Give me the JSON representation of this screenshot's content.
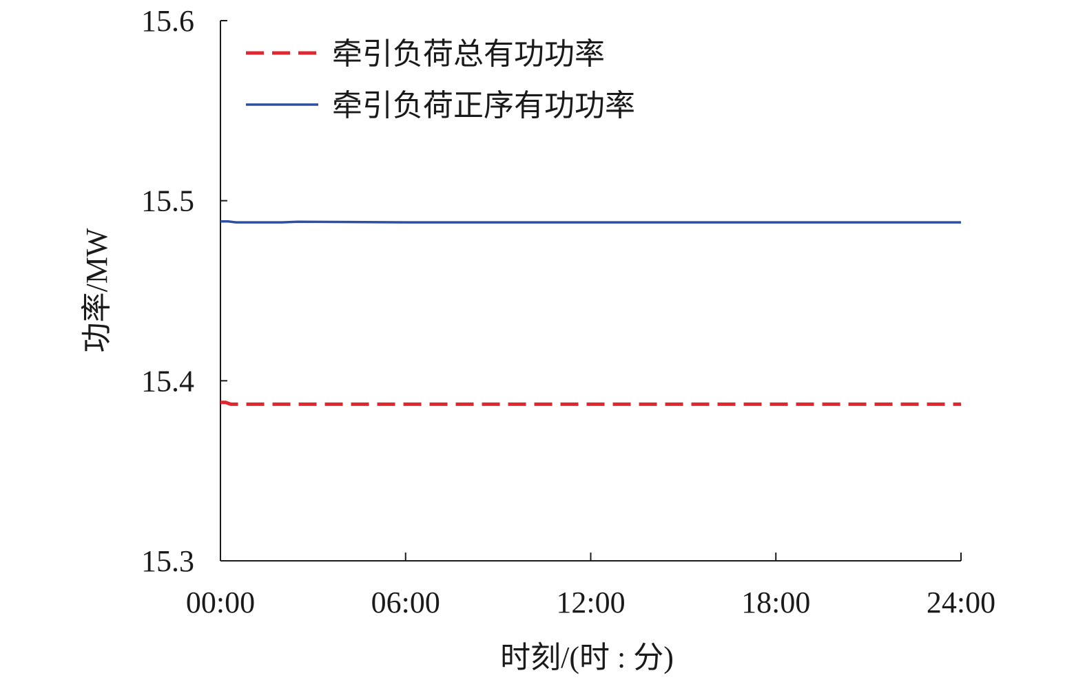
{
  "chart_data": {
    "type": "line",
    "title": "",
    "xlabel": "时刻/(时 : 分)",
    "ylabel": "功率/MW",
    "x_ticks": [
      "00:00",
      "06:00",
      "12:00",
      "18:00",
      "24:00"
    ],
    "xlim_hours": [
      0,
      24
    ],
    "y_ticks": [
      "15.3",
      "15.4",
      "15.5",
      "15.6"
    ],
    "ylim": [
      15.3,
      15.6
    ],
    "grid": false,
    "legend_position": "top-left",
    "series": [
      {
        "name": "牵引负荷总有功功率",
        "color": "#e0262f",
        "line_style": "dashed",
        "points": [
          {
            "x": "00:00",
            "y": 15.388
          },
          {
            "x": "00:10",
            "y": 15.388
          },
          {
            "x": "00:20",
            "y": 15.387
          },
          {
            "x": "06:00",
            "y": 15.387
          },
          {
            "x": "12:00",
            "y": 15.387
          },
          {
            "x": "18:00",
            "y": 15.387
          },
          {
            "x": "24:00",
            "y": 15.387
          }
        ]
      },
      {
        "name": "牵引负荷正序有功功率",
        "color": "#2c4ea3",
        "line_style": "solid",
        "points": [
          {
            "x": "00:00",
            "y": 15.4885
          },
          {
            "x": "00:15",
            "y": 15.4885
          },
          {
            "x": "00:30",
            "y": 15.488
          },
          {
            "x": "02:00",
            "y": 15.488
          },
          {
            "x": "02:30",
            "y": 15.4883
          },
          {
            "x": "06:00",
            "y": 15.488
          },
          {
            "x": "12:00",
            "y": 15.488
          },
          {
            "x": "18:00",
            "y": 15.488
          },
          {
            "x": "24:00",
            "y": 15.488
          }
        ]
      }
    ]
  }
}
